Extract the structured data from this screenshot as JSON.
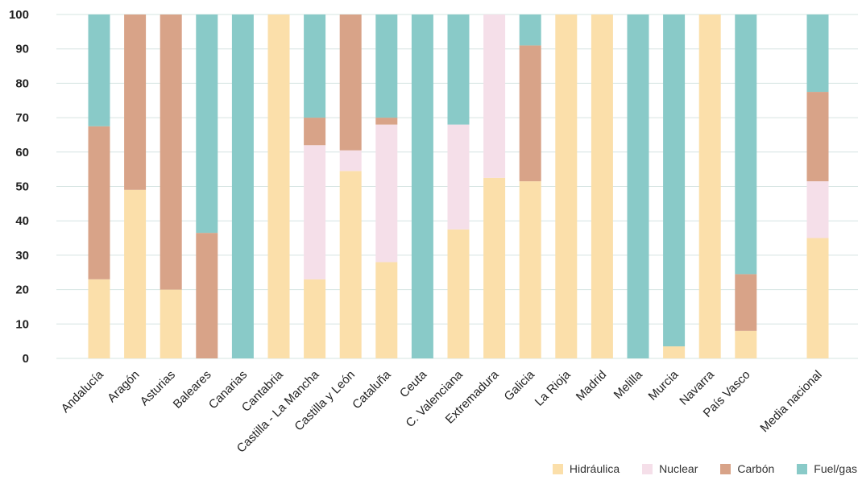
{
  "chart_data": {
    "type": "bar",
    "stacked": true,
    "title": "",
    "xlabel": "",
    "ylabel": "",
    "ylim": [
      0,
      100
    ],
    "yticks": [
      0,
      10,
      20,
      30,
      40,
      50,
      60,
      70,
      80,
      90,
      100
    ],
    "grid": true,
    "legend_position": "bottom-right",
    "categories": [
      "Andalucía",
      "Aragón",
      "Asturias",
      "Baleares",
      "Canarias",
      "Cantabria",
      "Castilla - La Mancha",
      "Castilla y León",
      "Cataluña",
      "Ceuta",
      "C. Valenciana",
      "Extremadura",
      "Galicia",
      "La Rioja",
      "Madrid",
      "Melilla",
      "Murcia",
      "Navarra",
      "País Vasco",
      "",
      "Media nacional"
    ],
    "series": [
      {
        "name": "Hidráulica",
        "color": "#fbdfaa",
        "values": [
          23,
          49,
          20,
          0,
          0,
          100,
          23,
          54.5,
          28,
          0,
          37.5,
          52.5,
          51.5,
          100,
          100,
          0,
          3.5,
          100,
          8,
          null,
          35
        ]
      },
      {
        "name": "Nuclear",
        "color": "#f5dfe9",
        "values": [
          0,
          0,
          0,
          0,
          0,
          0,
          39,
          6,
          40,
          0,
          30.5,
          47.5,
          0,
          0,
          0,
          0,
          0,
          0,
          0,
          null,
          16.5
        ]
      },
      {
        "name": "Carbón",
        "color": "#d8a388",
        "values": [
          44.5,
          51,
          80,
          36.5,
          0,
          0,
          8,
          39.5,
          2,
          0,
          0,
          0,
          39.5,
          0,
          0,
          0,
          0,
          0,
          16.5,
          null,
          26
        ]
      },
      {
        "name": "Fuel/gas",
        "color": "#89cac8",
        "values": [
          32.5,
          0,
          0,
          63.5,
          100,
          0,
          30,
          0,
          30,
          100,
          32,
          0,
          9,
          0,
          0,
          100,
          96.5,
          0,
          75.5,
          null,
          22.5
        ]
      }
    ]
  }
}
